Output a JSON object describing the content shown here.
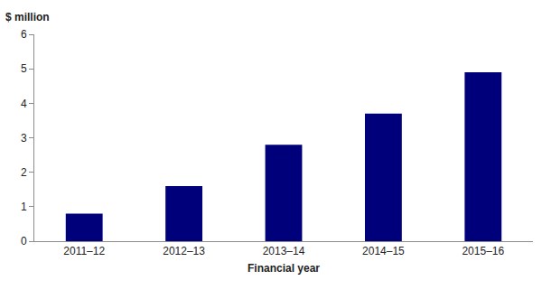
{
  "chart_data": {
    "type": "bar",
    "ylabel": "$ million",
    "xlabel": "Financial year",
    "categories": [
      "2011–12",
      "2012–13",
      "2013–14",
      "2014–15",
      "2015–16"
    ],
    "values": [
      0.8,
      1.6,
      2.8,
      3.7,
      4.9
    ],
    "color": "#00007a",
    "ylim": [
      0,
      6
    ],
    "yticks": [
      0,
      1,
      2,
      3,
      4,
      5,
      6
    ],
    "grid": false
  }
}
